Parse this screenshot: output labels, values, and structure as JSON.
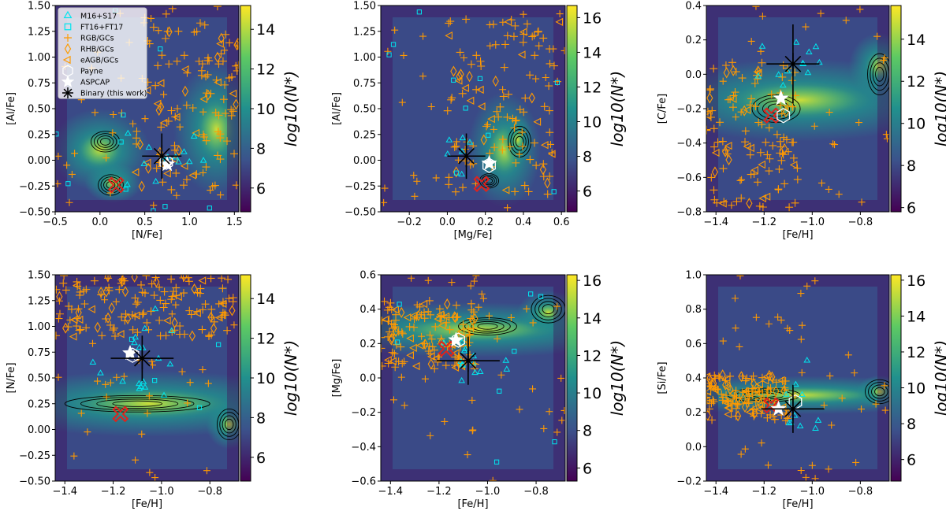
{
  "figure": {
    "legend_entries": [
      {
        "label": "M16+S17",
        "marker": "triangle",
        "color": "#00e5ee"
      },
      {
        "label": "FT16+FT17",
        "marker": "square",
        "color": "#00e5ee"
      },
      {
        "label": "RGB/GCs",
        "marker": "plus",
        "color": "#ff9900"
      },
      {
        "label": "RHB/GCs",
        "marker": "diamond",
        "color": "#ff9900"
      },
      {
        "label": "eAGB/GCs",
        "marker": "triangle-left",
        "color": "#ff9900"
      },
      {
        "label": "Payne",
        "marker": "hexagon",
        "color": "#ffffff"
      },
      {
        "label": "ASPCAP",
        "marker": "star",
        "color": "#ffffff"
      },
      {
        "label": "Binary (this work)",
        "marker": "asterisk",
        "color": "#000000"
      }
    ],
    "colors": {
      "m16": "#00e5ee",
      "gc": "#ff9900",
      "cross": "#e0231c",
      "cmap": [
        "#440154",
        "#3b528b",
        "#21908d",
        "#5dc963",
        "#fde725"
      ]
    }
  },
  "chart_data": [
    {
      "type": "scatter",
      "xlabel": "[N/Fe]",
      "ylabel": "[Al/Fe]",
      "xlim": [
        -0.5,
        1.55
      ],
      "ylim": [
        -0.5,
        1.5
      ],
      "xticks": [
        -0.5,
        0.0,
        0.5,
        1.0,
        1.5
      ],
      "xtick_labels": [
        "−0.5",
        "0.0",
        "0.5",
        "1.0",
        "1.5"
      ],
      "yticks": [
        -0.5,
        -0.25,
        0.0,
        0.25,
        0.5,
        0.75,
        1.0,
        1.25,
        1.5
      ],
      "ytick_labels": [
        "−0.50",
        "−0.25",
        "0.00",
        "0.25",
        "0.50",
        "0.75",
        "1.00",
        "1.25",
        "1.50"
      ],
      "colorbar": {
        "label": "log10(N*)",
        "range": [
          4.8,
          15.2
        ],
        "ticks": [
          6,
          8,
          10,
          12,
          14
        ]
      },
      "binary": {
        "x": 0.69,
        "y": 0.04,
        "xerr": 0.22,
        "yerr": 0.22
      },
      "aspcap": {
        "x": 0.75,
        "y": -0.04
      },
      "payne": {
        "x": 0.74,
        "y": -0.02
      },
      "cross": {
        "x": 0.18,
        "y": -0.24
      },
      "density_centers": [
        [
          0.0,
          0.1,
          0.35,
          0.25
        ],
        [
          0.15,
          -0.22,
          0.2,
          0.12
        ],
        [
          1.3,
          0.3,
          0.3,
          0.4
        ]
      ],
      "contours": [
        [
          0.06,
          0.18,
          0.16,
          0.1
        ],
        [
          0.12,
          -0.24,
          0.14,
          0.1
        ]
      ],
      "n_gc": 120,
      "n_m16": 14,
      "n_ft": 10,
      "gc_region": [
        0.4,
        1.55,
        -0.3,
        1.5
      ]
    },
    {
      "type": "scatter",
      "xlabel": "[Mg/Fe]",
      "ylabel": "[Al/Fe]",
      "xlim": [
        -0.35,
        0.62
      ],
      "ylim": [
        -0.5,
        1.5
      ],
      "xticks": [
        -0.2,
        0.0,
        0.2,
        0.4,
        0.6
      ],
      "xtick_labels": [
        "−0.2",
        "0.0",
        "0.2",
        "0.4",
        "0.6"
      ],
      "yticks": [
        -0.5,
        -0.25,
        0.0,
        0.25,
        0.5,
        0.75,
        1.0,
        1.25,
        1.5
      ],
      "ytick_labels": [
        "−0.50",
        "−0.25",
        "0.00",
        "0.25",
        "0.50",
        "0.75",
        "1.00",
        "1.25",
        "1.50"
      ],
      "colorbar": {
        "label": "log10(N*)",
        "range": [
          4.8,
          16.7
        ],
        "ticks": [
          6,
          8,
          10,
          12,
          14,
          16
        ]
      },
      "binary": {
        "x": 0.1,
        "y": 0.04,
        "xerr": 0.1,
        "yerr": 0.22
      },
      "aspcap": {
        "x": 0.22,
        "y": -0.03
      },
      "payne": {
        "x": 0.22,
        "y": -0.05
      },
      "cross": {
        "x": 0.18,
        "y": -0.23
      },
      "density_centers": [
        [
          0.3,
          0.1,
          0.12,
          0.35
        ],
        [
          0.37,
          0.2,
          0.05,
          0.15
        ]
      ],
      "contours": [
        [
          0.38,
          0.18,
          0.06,
          0.15
        ],
        [
          0.22,
          -0.2,
          0.05,
          0.07
        ]
      ],
      "n_gc": 110,
      "n_m16": 6,
      "n_ft": 10,
      "gc_region": [
        0.0,
        0.6,
        -0.35,
        1.4
      ]
    },
    {
      "type": "scatter",
      "xlabel": "[Fe/H]",
      "ylabel": "[C/Fe]",
      "xlim": [
        -1.44,
        -0.68
      ],
      "ylim": [
        -0.8,
        0.4
      ],
      "xticks": [
        -1.4,
        -1.2,
        -1.0,
        -0.8
      ],
      "xtick_labels": [
        "−1.4",
        "−1.2",
        "−1.0",
        "−0.8"
      ],
      "yticks": [
        -0.8,
        -0.6,
        -0.4,
        -0.2,
        0.0,
        0.2,
        0.4
      ],
      "ytick_labels": [
        "−0.8",
        "−0.6",
        "−0.4",
        "−0.2",
        "0.0",
        "0.2",
        "0.4"
      ],
      "colorbar": {
        "label": "log10(N*)",
        "range": [
          5.8,
          15.6
        ],
        "ticks": [
          6,
          8,
          10,
          12,
          14
        ]
      },
      "binary": {
        "x": -1.08,
        "y": 0.06,
        "xerr": 0.11,
        "yerr": 0.23
      },
      "aspcap": {
        "x": -1.13,
        "y": -0.14
      },
      "payne": {
        "x": -1.12,
        "y": -0.24
      },
      "cross": {
        "x": -1.17,
        "y": -0.24
      },
      "density_centers": [
        [
          -1.05,
          -0.15,
          0.4,
          0.15
        ],
        [
          -0.72,
          0.05,
          0.08,
          0.12
        ]
      ],
      "contours": [
        [
          -0.72,
          0.0,
          0.05,
          0.12
        ],
        [
          -1.15,
          -0.2,
          0.1,
          0.08
        ]
      ],
      "n_gc": 110,
      "n_m16": 12,
      "n_ft": 0,
      "gc_region": [
        -1.44,
        -1.05,
        -0.78,
        0.1
      ]
    },
    {
      "type": "scatter",
      "xlabel": "[Fe/H]",
      "ylabel": "[N/Fe]",
      "xlim": [
        -1.44,
        -0.68
      ],
      "ylim": [
        -0.5,
        1.5
      ],
      "xticks": [
        -1.4,
        -1.2,
        -1.0,
        -0.8
      ],
      "xtick_labels": [
        "−1.4",
        "−1.2",
        "−1.0",
        "−0.8"
      ],
      "yticks": [
        -0.5,
        -0.25,
        0.0,
        0.25,
        0.5,
        0.75,
        1.0,
        1.25,
        1.5
      ],
      "ytick_labels": [
        "−0.50",
        "−0.25",
        "0.00",
        "0.25",
        "0.50",
        "0.75",
        "1.00",
        "1.25",
        "1.50"
      ],
      "colorbar": {
        "label": "log10(N*)",
        "range": [
          4.8,
          15.2
        ],
        "ticks": [
          6,
          8,
          10,
          12,
          14
        ]
      },
      "binary": {
        "x": -1.08,
        "y": 0.69,
        "xerr": 0.13,
        "yerr": 0.22
      },
      "aspcap": {
        "x": -1.13,
        "y": 0.74
      },
      "payne": {
        "x": -1.12,
        "y": 0.72
      },
      "cross": {
        "x": -1.17,
        "y": 0.15
      },
      "density_centers": [
        [
          -1.05,
          0.25,
          0.45,
          0.2
        ],
        [
          -0.72,
          0.05,
          0.06,
          0.15
        ]
      ],
      "contours": [
        [
          -0.72,
          0.05,
          0.05,
          0.15
        ],
        [
          -1.1,
          0.25,
          0.3,
          0.08
        ]
      ],
      "n_gc": 140,
      "n_m16": 18,
      "n_ft": 4,
      "gc_region": [
        -1.44,
        -0.7,
        0.9,
        1.5
      ]
    },
    {
      "type": "scatter",
      "xlabel": "[Fe/H]",
      "ylabel": "[Mg/Fe]",
      "xlim": [
        -1.44,
        -0.68
      ],
      "ylim": [
        -0.6,
        0.6
      ],
      "xticks": [
        -1.4,
        -1.2,
        -1.0,
        -0.8
      ],
      "xtick_labels": [
        "−1.4",
        "−1.2",
        "−1.0",
        "−0.8"
      ],
      "yticks": [
        -0.6,
        -0.4,
        -0.2,
        0.0,
        0.2,
        0.4,
        0.6
      ],
      "ytick_labels": [
        "−0.6",
        "−0.4",
        "−0.2",
        "0.0",
        "0.2",
        "0.4",
        "0.6"
      ],
      "colorbar": {
        "label": "log10(N*)",
        "range": [
          5.3,
          16.3
        ],
        "ticks": [
          6,
          8,
          10,
          12,
          14,
          16
        ]
      },
      "binary": {
        "x": -1.08,
        "y": 0.1,
        "xerr": 0.13,
        "yerr": 0.14
      },
      "aspcap": {
        "x": -1.13,
        "y": 0.22
      },
      "payne": {
        "x": -1.12,
        "y": 0.22
      },
      "cross": {
        "x": -1.17,
        "y": 0.17
      },
      "density_centers": [
        [
          -1.05,
          0.28,
          0.45,
          0.1
        ],
        [
          -0.75,
          0.38,
          0.08,
          0.08
        ]
      ],
      "contours": [
        [
          -0.75,
          0.4,
          0.07,
          0.08
        ],
        [
          -1.0,
          0.3,
          0.12,
          0.05
        ]
      ],
      "n_gc": 130,
      "n_m16": 14,
      "n_ft": 8,
      "gc_region": [
        -1.44,
        -1.05,
        0.05,
        0.45
      ]
    },
    {
      "type": "scatter",
      "xlabel": "[Fe/H]",
      "ylabel": "[Si/Fe]",
      "xlim": [
        -1.44,
        -0.68
      ],
      "ylim": [
        -0.2,
        1.0
      ],
      "xticks": [
        -1.4,
        -1.2,
        -1.0,
        -0.8
      ],
      "xtick_labels": [
        "−1.4",
        "−1.2",
        "−1.0",
        "−0.8"
      ],
      "yticks": [
        -0.2,
        0.0,
        0.2,
        0.4,
        0.6,
        0.8,
        1.0
      ],
      "ytick_labels": [
        "−0.2",
        "0.0",
        "0.2",
        "0.4",
        "0.6",
        "0.8",
        "1.0"
      ],
      "colorbar": {
        "label": "log10(N*)",
        "range": [
          4.8,
          16.3
        ],
        "ticks": [
          6,
          8,
          10,
          12,
          14,
          16
        ]
      },
      "binary": {
        "x": -1.08,
        "y": 0.22,
        "xerr": 0.13,
        "yerr": 0.14
      },
      "aspcap": {
        "x": -1.14,
        "y": 0.22
      },
      "payne": {
        "x": -1.07,
        "y": 0.26
      },
      "cross": {
        "x": -1.17,
        "y": 0.24
      },
      "density_centers": [
        [
          -1.05,
          0.3,
          0.45,
          0.07
        ],
        [
          -0.72,
          0.32,
          0.06,
          0.06
        ]
      ],
      "contours": [
        [
          -0.72,
          0.32,
          0.06,
          0.07
        ],
        [
          -1.2,
          0.3,
          0.15,
          0.04
        ]
      ],
      "n_gc": 130,
      "n_m16": 10,
      "n_ft": 0,
      "gc_region": [
        -1.44,
        -1.1,
        0.15,
        0.42
      ]
    }
  ]
}
